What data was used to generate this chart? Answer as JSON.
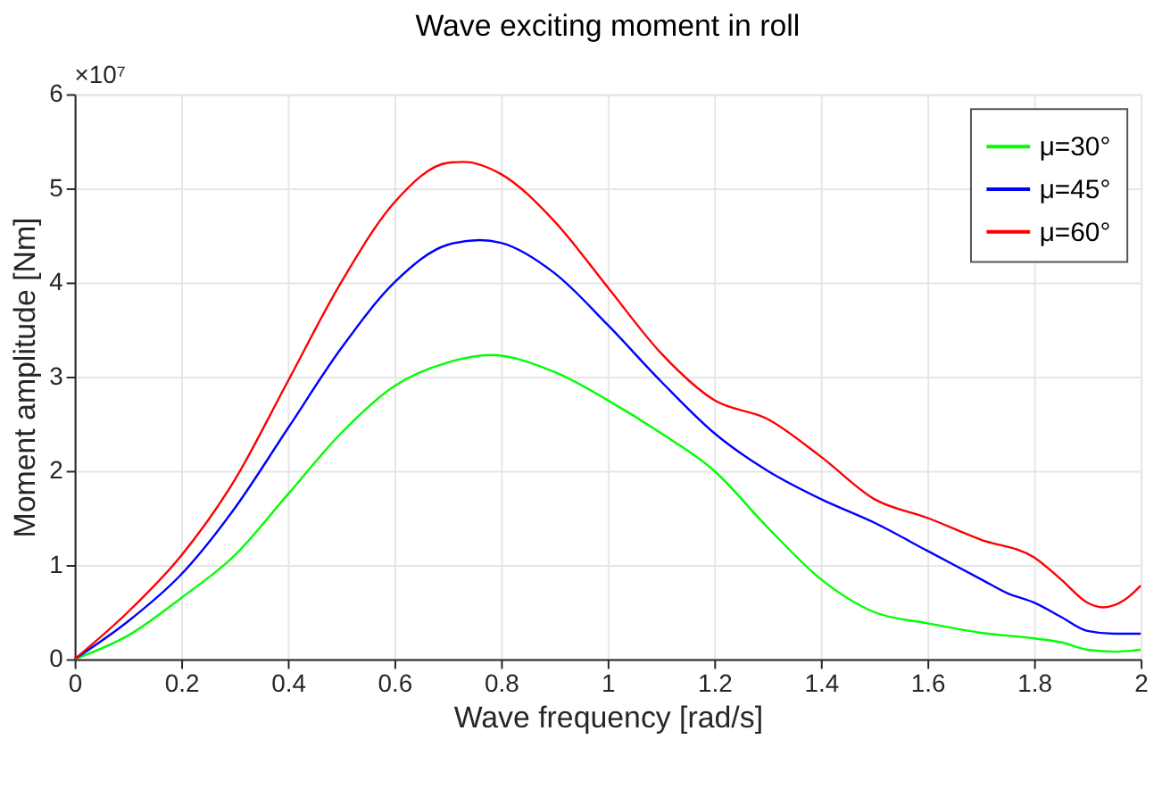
{
  "chart_data": {
    "type": "line",
    "title": "Wave exciting moment in roll",
    "xlabel": "Wave frequency [rad/s]",
    "ylabel": "Moment amplitude [Nm]",
    "annotations": [
      "×10⁷"
    ],
    "xlim": [
      0,
      2
    ],
    "ylim": [
      0,
      6
    ],
    "xticks": [
      0,
      0.2,
      0.4,
      0.6,
      0.8,
      1,
      1.2,
      1.4,
      1.6,
      1.8,
      2
    ],
    "yticks": [
      0,
      1,
      2,
      3,
      4,
      5,
      6
    ],
    "grid": true,
    "legend": "top right",
    "line_style": "solid",
    "marker": "none",
    "series": [
      {
        "name": "μ=30°",
        "color": "#00ff00",
        "x": [
          0,
          0.1,
          0.2,
          0.3,
          0.4,
          0.5,
          0.6,
          0.7,
          0.78,
          0.9,
          1.0,
          1.1,
          1.2,
          1.3,
          1.4,
          1.5,
          1.6,
          1.7,
          1.8,
          1.85,
          1.9,
          1.95,
          2.0
        ],
        "values": [
          0,
          0.25,
          0.65,
          1.1,
          1.75,
          2.4,
          2.9,
          3.15,
          3.23,
          3.05,
          2.75,
          2.4,
          2.0,
          1.4,
          0.85,
          0.5,
          0.38,
          0.28,
          0.22,
          0.18,
          0.1,
          0.08,
          0.1
        ]
      },
      {
        "name": "μ=45°",
        "color": "#0000ff",
        "x": [
          0,
          0.1,
          0.2,
          0.3,
          0.4,
          0.5,
          0.6,
          0.7,
          0.76,
          0.8,
          0.9,
          1.0,
          1.1,
          1.2,
          1.3,
          1.4,
          1.5,
          1.6,
          1.7,
          1.75,
          1.8,
          1.85,
          1.9,
          1.95,
          2.0
        ],
        "values": [
          0,
          0.4,
          0.9,
          1.6,
          2.45,
          3.3,
          4.0,
          4.4,
          4.45,
          4.42,
          4.1,
          3.55,
          2.95,
          2.4,
          2.0,
          1.7,
          1.45,
          1.15,
          0.85,
          0.7,
          0.6,
          0.45,
          0.3,
          0.27,
          0.27
        ]
      },
      {
        "name": "μ=60°",
        "color": "#ff0000",
        "x": [
          0,
          0.1,
          0.2,
          0.3,
          0.4,
          0.5,
          0.6,
          0.7,
          0.73,
          0.8,
          0.9,
          1.0,
          1.1,
          1.2,
          1.3,
          1.4,
          1.5,
          1.6,
          1.7,
          1.8,
          1.85,
          1.9,
          1.93,
          1.97,
          2.0
        ],
        "values": [
          0,
          0.5,
          1.1,
          1.9,
          2.95,
          4.0,
          4.85,
          5.27,
          5.28,
          5.15,
          4.65,
          3.95,
          3.25,
          2.75,
          2.55,
          2.15,
          1.7,
          1.5,
          1.27,
          1.08,
          0.85,
          0.6,
          0.55,
          0.63,
          0.78
        ]
      }
    ]
  }
}
